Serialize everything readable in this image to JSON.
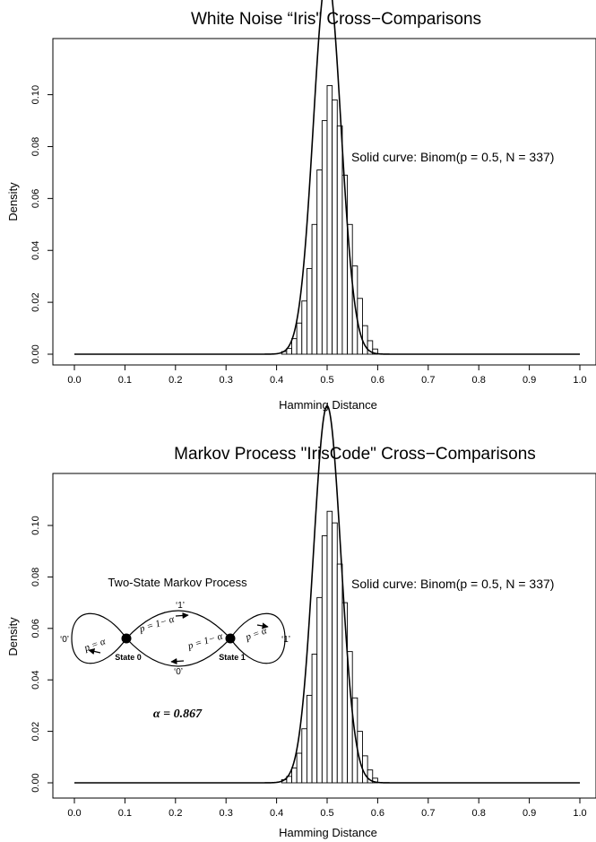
{
  "chart_data": [
    {
      "type": "bar",
      "title": "White Noise “Iris\" Cross−Comparisons",
      "xlabel": "Hamming Distance",
      "ylabel": "Density",
      "xlim": [
        0.0,
        1.0
      ],
      "ylim": [
        0.0,
        0.12
      ],
      "xticks": [
        "0.0",
        "0.1",
        "0.2",
        "0.3",
        "0.4",
        "0.5",
        "0.6",
        "0.7",
        "0.8",
        "0.9",
        "1.0"
      ],
      "yticks": [
        "0.00",
        "0.02",
        "0.04",
        "0.06",
        "0.08",
        "0.10"
      ],
      "annotation": "Solid curve:  Binom(p = 0.5, N = 337)",
      "bin_width": 0.01,
      "bins_start": [
        0.41,
        0.42,
        0.43,
        0.44,
        0.45,
        0.46,
        0.47,
        0.48,
        0.49,
        0.5,
        0.51,
        0.52,
        0.53,
        0.54,
        0.55,
        0.56,
        0.57,
        0.58,
        0.59
      ],
      "values": [
        0.001,
        0.0022,
        0.006,
        0.012,
        0.0205,
        0.033,
        0.05,
        0.071,
        0.09,
        0.1035,
        0.098,
        0.088,
        0.069,
        0.05,
        0.034,
        0.0215,
        0.011,
        0.0052,
        0.002
      ],
      "curve": {
        "name": "Binom(p = 0.5, N = 337)",
        "p": 0.5,
        "N": 337
      }
    },
    {
      "type": "bar",
      "title": "Markov Process \"IrisCode\" Cross−Comparisons",
      "xlabel": "Hamming Distance",
      "ylabel": "Density",
      "xlim": [
        0.0,
        1.0
      ],
      "ylim": [
        0.0,
        0.12
      ],
      "xticks": [
        "0.0",
        "0.1",
        "0.2",
        "0.3",
        "0.4",
        "0.5",
        "0.6",
        "0.7",
        "0.8",
        "0.9",
        "1.0"
      ],
      "yticks": [
        "0.00",
        "0.02",
        "0.04",
        "0.06",
        "0.08",
        "0.10"
      ],
      "annotation": "Solid curve:  Binom(p = 0.5, N = 337)",
      "bin_width": 0.01,
      "bins_start": [
        0.41,
        0.42,
        0.43,
        0.44,
        0.45,
        0.46,
        0.47,
        0.48,
        0.49,
        0.5,
        0.51,
        0.52,
        0.53,
        0.54,
        0.55,
        0.56,
        0.57,
        0.58,
        0.59
      ],
      "values": [
        0.0012,
        0.0025,
        0.0058,
        0.0115,
        0.021,
        0.034,
        0.05,
        0.072,
        0.096,
        0.1055,
        0.101,
        0.085,
        0.07,
        0.051,
        0.033,
        0.02,
        0.0105,
        0.005,
        0.0018
      ],
      "curve": {
        "name": "Binom(p = 0.5, N = 337)",
        "p": 0.5,
        "N": 337
      },
      "inset": {
        "title": "Two-State Markov Process",
        "state0": "State 0",
        "state1": "State 1",
        "emit_top": "‘1’",
        "emit_bottom": "‘0’",
        "emit_left": "‘0’",
        "emit_right": "‘1’",
        "p_top": "p = 1− α",
        "p_bottom": "p = 1− α",
        "p_left": "p = α",
        "p_right": "p = α",
        "alpha_label": "α = 0.867"
      }
    }
  ]
}
